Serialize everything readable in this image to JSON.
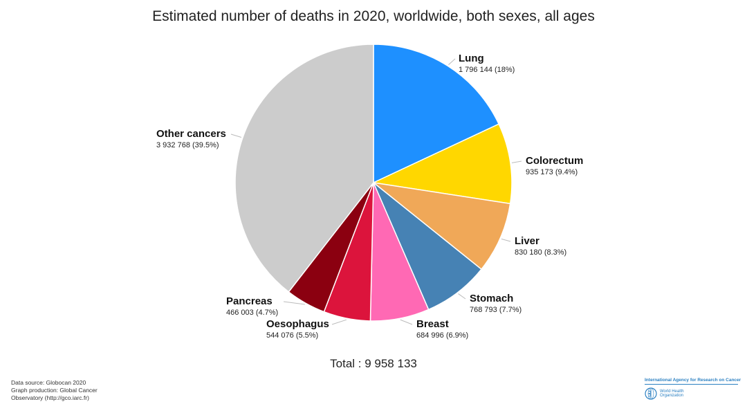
{
  "chart_data": {
    "type": "pie",
    "title": "Estimated number of deaths in 2020, worldwide, both sexes, all ages",
    "total_label": "Total : 9 958 133",
    "slices": [
      {
        "name": "Lung",
        "value": 1796144,
        "value_label": "1 796 144 (18%)",
        "percent": 18.0,
        "color": "#1e90ff"
      },
      {
        "name": "Colorectum",
        "value": 935173,
        "value_label": "935 173 (9.4%)",
        "percent": 9.4,
        "color": "#ffd700"
      },
      {
        "name": "Liver",
        "value": 830180,
        "value_label": "830 180 (8.3%)",
        "percent": 8.3,
        "color": "#f0a858"
      },
      {
        "name": "Stomach",
        "value": 768793,
        "value_label": "768 793 (7.7%)",
        "percent": 7.7,
        "color": "#4682b4"
      },
      {
        "name": "Breast",
        "value": 684996,
        "value_label": "684 996 (6.9%)",
        "percent": 6.9,
        "color": "#ff69b4"
      },
      {
        "name": "Oesophagus",
        "value": 544076,
        "value_label": "544 076 (5.5%)",
        "percent": 5.5,
        "color": "#dc143c"
      },
      {
        "name": "Pancreas",
        "value": 466003,
        "value_label": "466 003 (4.7%)",
        "percent": 4.7,
        "color": "#8b0010"
      },
      {
        "name": "Other cancers",
        "value": 3932768,
        "value_label": "3 932 768 (39.5%)",
        "percent": 39.5,
        "color": "#cccccc"
      }
    ]
  },
  "footer": {
    "line1": "Data source: Globocan 2020",
    "line2": "Graph production: Global Cancer",
    "line3_prefix": "Observatory (",
    "link": "http://gco.iarc.fr",
    "line3_suffix": ")"
  },
  "logos": {
    "iarc": "International Agency for Research on Cancer",
    "who": "World Health Organization"
  }
}
